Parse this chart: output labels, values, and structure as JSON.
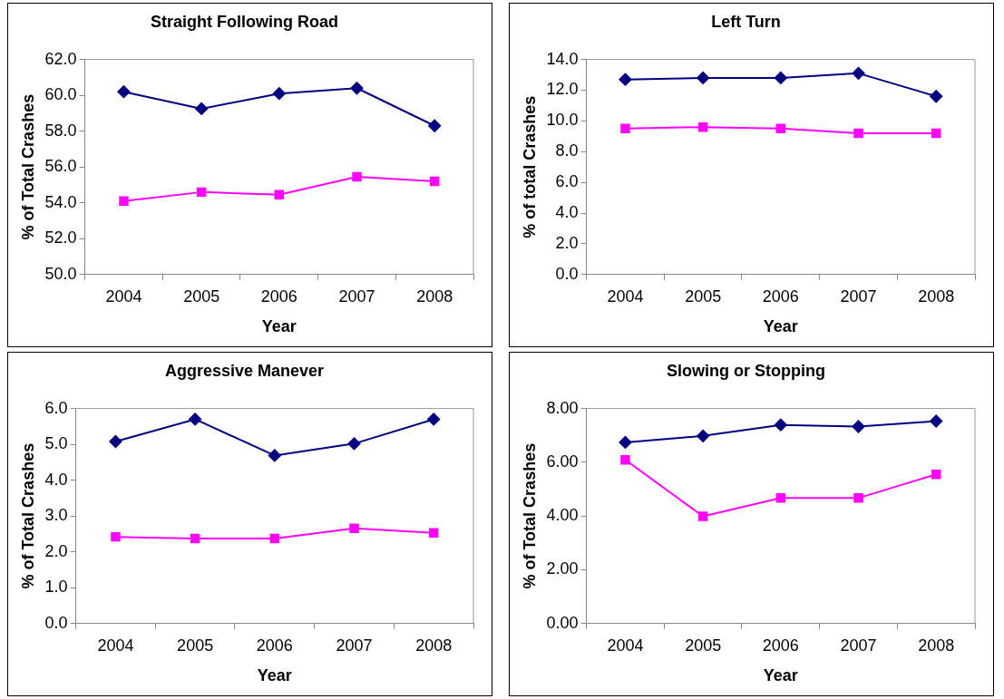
{
  "chart_data": [
    {
      "type": "line",
      "title": "Straight Following Road",
      "xlabel": "Year",
      "ylabel": "% of Total Crashes",
      "categories": [
        "2004",
        "2005",
        "2006",
        "2007",
        "2008"
      ],
      "ylim": [
        50,
        62
      ],
      "yticks": [
        {
          "value": 50,
          "label": "50.0"
        },
        {
          "value": 52,
          "label": "52.0"
        },
        {
          "value": 54,
          "label": "54.0"
        },
        {
          "value": 56,
          "label": "56.0"
        },
        {
          "value": 58,
          "label": "58.0"
        },
        {
          "value": 60,
          "label": "60.0"
        },
        {
          "value": 62,
          "label": "62.0"
        }
      ],
      "series": [
        {
          "color": "#000080",
          "marker": "diamond",
          "values": [
            60.2,
            59.25,
            60.1,
            60.4,
            58.3
          ]
        },
        {
          "color": "#ff00ff",
          "marker": "square",
          "values": [
            54.1,
            54.6,
            54.45,
            55.45,
            55.2
          ]
        }
      ]
    },
    {
      "type": "line",
      "title": "Left Turn",
      "xlabel": "Year",
      "ylabel": "% of total Crashes",
      "categories": [
        "2004",
        "2005",
        "2006",
        "2007",
        "2008"
      ],
      "ylim": [
        0,
        14
      ],
      "yticks": [
        {
          "value": 0,
          "label": "0.0"
        },
        {
          "value": 2,
          "label": "2.0"
        },
        {
          "value": 4,
          "label": "4.0"
        },
        {
          "value": 6,
          "label": "6.0"
        },
        {
          "value": 8,
          "label": "8.0"
        },
        {
          "value": 10,
          "label": "10.0"
        },
        {
          "value": 12,
          "label": "12.0"
        },
        {
          "value": 14,
          "label": "14.0"
        }
      ],
      "series": [
        {
          "color": "#000080",
          "marker": "diamond",
          "values": [
            12.7,
            12.8,
            12.8,
            13.1,
            11.6
          ]
        },
        {
          "color": "#ff00ff",
          "marker": "square",
          "values": [
            9.5,
            9.6,
            9.5,
            9.2,
            9.2
          ]
        }
      ]
    },
    {
      "type": "line",
      "title": "Aggressive Manever",
      "xlabel": "Year",
      "ylabel": "% of Total Crashes",
      "categories": [
        "2004",
        "2005",
        "2006",
        "2007",
        "2008"
      ],
      "ylim": [
        0,
        6
      ],
      "yticks": [
        {
          "value": 0,
          "label": "0.0"
        },
        {
          "value": 1,
          "label": "1.0"
        },
        {
          "value": 2,
          "label": "2.0"
        },
        {
          "value": 3,
          "label": "3.0"
        },
        {
          "value": 4,
          "label": "4.0"
        },
        {
          "value": 5,
          "label": "5.0"
        },
        {
          "value": 6,
          "label": "6.0"
        }
      ],
      "series": [
        {
          "color": "#000080",
          "marker": "diamond",
          "values": [
            5.08,
            5.7,
            4.69,
            5.02,
            5.7
          ]
        },
        {
          "color": "#ff00ff",
          "marker": "square",
          "values": [
            2.42,
            2.37,
            2.37,
            2.66,
            2.53
          ]
        }
      ]
    },
    {
      "type": "line",
      "title": "Slowing or Stopping",
      "xlabel": "Year",
      "ylabel": "% of Total Crashes",
      "categories": [
        "2004",
        "2005",
        "2006",
        "2007",
        "2008"
      ],
      "ylim": [
        0,
        8
      ],
      "yticks": [
        {
          "value": 0,
          "label": "0.00"
        },
        {
          "value": 2,
          "label": "2.00"
        },
        {
          "value": 4,
          "label": "4.00"
        },
        {
          "value": 6,
          "label": "6.00"
        },
        {
          "value": 8,
          "label": "8.00"
        }
      ],
      "series": [
        {
          "color": "#000080",
          "marker": "diamond",
          "values": [
            6.74,
            6.98,
            7.39,
            7.33,
            7.53
          ]
        },
        {
          "color": "#ff00ff",
          "marker": "square",
          "values": [
            6.09,
            3.99,
            4.67,
            4.67,
            5.55
          ]
        }
      ]
    }
  ]
}
